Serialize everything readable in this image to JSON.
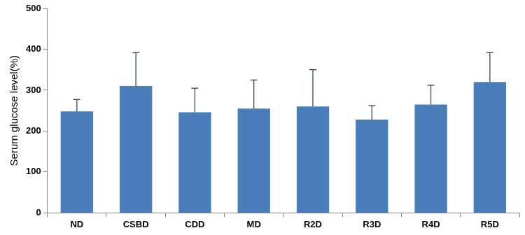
{
  "chart_data": {
    "type": "bar",
    "y_label": "Serum glucose level(%)",
    "categories": [
      "ND",
      "CSBD",
      "CDD",
      "MD",
      "R2D",
      "R3D",
      "R4D",
      "R5D"
    ],
    "values": [
      248,
      310,
      246,
      255,
      260,
      228,
      265,
      320
    ],
    "errors": [
      29,
      82,
      59,
      70,
      90,
      34,
      47,
      72
    ],
    "color": "#4a7ebb",
    "ylim": [
      0,
      500
    ],
    "yticks": [
      0,
      100,
      200,
      300,
      400,
      500
    ],
    "grid": false
  }
}
